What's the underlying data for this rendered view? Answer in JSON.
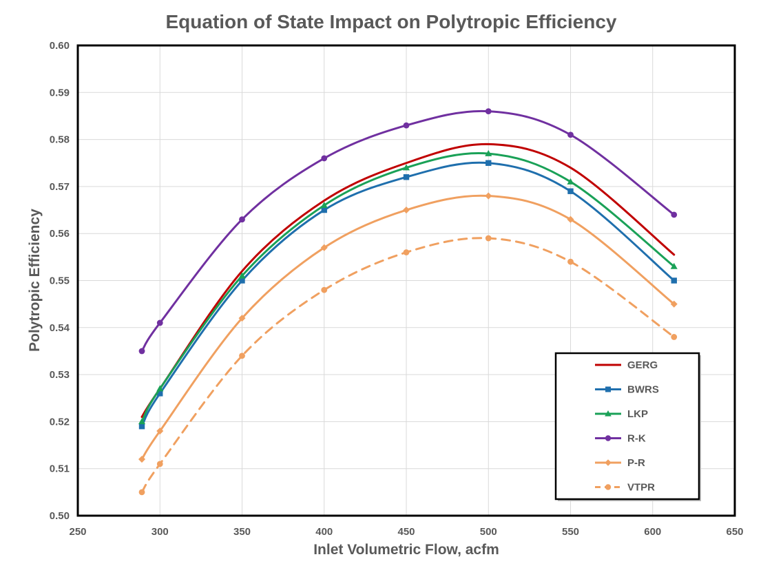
{
  "chart_data": {
    "type": "line",
    "title": "Equation of State Impact on Polytropic Efficiency",
    "xlabel": "Inlet Volumetric Flow, acfm",
    "ylabel": "Polytropic Efficiency",
    "xlim": [
      250,
      650
    ],
    "ylim": [
      0.5,
      0.6
    ],
    "xticks": [
      250,
      300,
      350,
      400,
      450,
      500,
      550,
      600,
      650
    ],
    "xtick_labels": [
      "250",
      "300",
      "350",
      "400",
      "450",
      "500",
      "550",
      "600",
      "650"
    ],
    "yticks": [
      0.5,
      0.51,
      0.52,
      0.53,
      0.54,
      0.55,
      0.56,
      0.57,
      0.58,
      0.59,
      0.6
    ],
    "ytick_labels": [
      "0.50",
      "0.51",
      "0.52",
      "0.53",
      "0.54",
      "0.55",
      "0.56",
      "0.57",
      "0.58",
      "0.59",
      "0.60"
    ],
    "grid": true,
    "legend_position": "bottom-right",
    "series": [
      {
        "name": "GERG",
        "color": "#c00000",
        "marker": "none",
        "dash": false,
        "x": [
          289,
          300,
          350,
          400,
          450,
          500,
          550,
          613
        ],
        "y": [
          0.521,
          0.527,
          0.552,
          0.567,
          0.575,
          0.579,
          0.574,
          0.5555
        ]
      },
      {
        "name": "BWRS",
        "color": "#1f6fad",
        "marker": "square",
        "dash": false,
        "x": [
          289,
          300,
          350,
          400,
          450,
          500,
          550,
          613
        ],
        "y": [
          0.519,
          0.526,
          0.55,
          0.565,
          0.572,
          0.575,
          0.569,
          0.55
        ]
      },
      {
        "name": "LKP",
        "color": "#1aa157",
        "marker": "triangle",
        "dash": false,
        "x": [
          289,
          300,
          350,
          400,
          450,
          500,
          550,
          613
        ],
        "y": [
          0.52,
          0.527,
          0.551,
          0.566,
          0.574,
          0.577,
          0.571,
          0.553
        ]
      },
      {
        "name": "R-K",
        "color": "#7030a0",
        "marker": "circle",
        "dash": false,
        "x": [
          289,
          300,
          350,
          400,
          450,
          500,
          550,
          613
        ],
        "y": [
          0.535,
          0.541,
          0.563,
          0.576,
          0.583,
          0.586,
          0.581,
          0.564
        ]
      },
      {
        "name": "P-R",
        "color": "#f0a060",
        "marker": "diamond",
        "dash": false,
        "x": [
          289,
          300,
          350,
          400,
          450,
          500,
          550,
          613
        ],
        "y": [
          0.512,
          0.518,
          0.542,
          0.557,
          0.565,
          0.568,
          0.563,
          0.545
        ]
      },
      {
        "name": "VTPR",
        "color": "#f0a060",
        "marker": "circle",
        "dash": true,
        "x": [
          289,
          300,
          350,
          400,
          450,
          500,
          550,
          613
        ],
        "y": [
          0.505,
          0.511,
          0.534,
          0.548,
          0.556,
          0.559,
          0.554,
          0.538
        ]
      }
    ]
  }
}
